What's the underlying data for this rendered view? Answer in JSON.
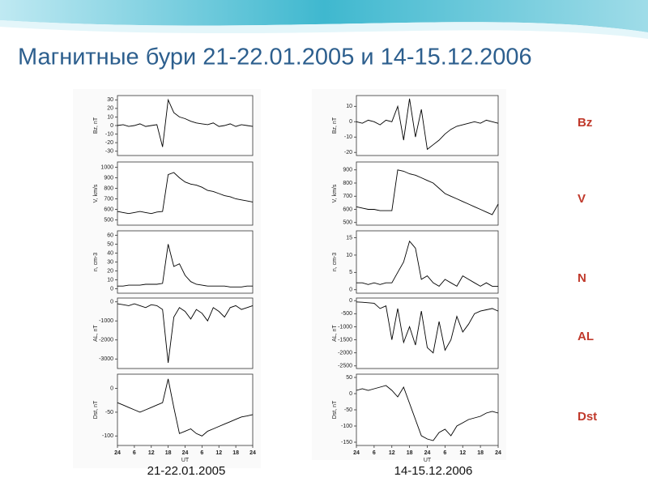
{
  "title": "Магнитные бури 21-22.01.2005 и 14-15.12.2006",
  "captions": [
    "21-22.01.2005",
    "14-15.12.2006"
  ],
  "labels": [
    "Bz",
    "V",
    "N",
    "AL",
    "Dst"
  ],
  "chart_data": [
    {
      "type": "line",
      "ylabel": "Bz, nT",
      "color": "#000",
      "xlim": [
        0,
        48
      ],
      "ylim": [
        -35,
        35
      ],
      "yticks": [
        -30,
        -20,
        -10,
        0,
        10,
        20,
        30
      ],
      "x": [
        0,
        2,
        4,
        6,
        8,
        10,
        12,
        14,
        16,
        18,
        20,
        22,
        24,
        26,
        28,
        30,
        32,
        34,
        36,
        38,
        40,
        42,
        44,
        46,
        48
      ],
      "values": [
        0,
        1,
        -1,
        0,
        2,
        -1,
        0,
        1,
        -25,
        30,
        15,
        10,
        8,
        5,
        3,
        2,
        1,
        3,
        -1,
        0,
        2,
        -1,
        1,
        0,
        -1
      ]
    },
    {
      "type": "line",
      "ylabel": "V, km/s",
      "color": "#000",
      "xlim": [
        0,
        48
      ],
      "ylim": [
        450,
        1050
      ],
      "yticks": [
        500,
        600,
        700,
        800,
        900,
        1000
      ],
      "x": [
        0,
        2,
        4,
        6,
        8,
        10,
        12,
        14,
        16,
        18,
        20,
        22,
        24,
        26,
        28,
        30,
        32,
        34,
        36,
        38,
        40,
        42,
        44,
        46,
        48
      ],
      "values": [
        580,
        570,
        560,
        570,
        580,
        570,
        560,
        575,
        580,
        930,
        950,
        900,
        860,
        840,
        830,
        810,
        780,
        770,
        750,
        730,
        720,
        700,
        690,
        680,
        670
      ]
    },
    {
      "type": "line",
      "ylabel": "n, cm-3",
      "color": "#000",
      "xlim": [
        0,
        48
      ],
      "ylim": [
        -5,
        65
      ],
      "yticks": [
        0,
        10,
        20,
        30,
        40,
        50,
        60
      ],
      "x": [
        0,
        2,
        4,
        6,
        8,
        10,
        12,
        14,
        16,
        18,
        20,
        22,
        24,
        26,
        28,
        30,
        32,
        34,
        36,
        38,
        40,
        42,
        44,
        46,
        48
      ],
      "values": [
        3,
        3,
        4,
        4,
        4,
        5,
        5,
        5,
        6,
        50,
        25,
        28,
        15,
        8,
        5,
        4,
        3,
        3,
        3,
        3,
        2,
        2,
        2,
        3,
        3
      ]
    },
    {
      "type": "line",
      "ylabel": "AL, nT",
      "color": "#000",
      "xlim": [
        0,
        48
      ],
      "ylim": [
        -3500,
        200
      ],
      "yticks": [
        -3000,
        -2000,
        -1000,
        0
      ],
      "x": [
        0,
        2,
        4,
        6,
        8,
        10,
        12,
        14,
        16,
        18,
        20,
        22,
        24,
        26,
        28,
        30,
        32,
        34,
        36,
        38,
        40,
        42,
        44,
        46,
        48
      ],
      "values": [
        -100,
        -150,
        -200,
        -100,
        -200,
        -300,
        -150,
        -200,
        -400,
        -3200,
        -800,
        -300,
        -500,
        -900,
        -400,
        -600,
        -1000,
        -300,
        -500,
        -800,
        -300,
        -200,
        -400,
        -300,
        -200
      ]
    },
    {
      "type": "line",
      "ylabel": "Dst, nT",
      "xlabel": "UT",
      "color": "#000",
      "xlim": [
        0,
        48
      ],
      "ylim": [
        -120,
        30
      ],
      "yticks": [
        -100,
        -50,
        0
      ],
      "xticks": [
        {
          "value": 0,
          "label": "24"
        },
        6,
        12,
        18,
        24,
        {
          "value": 30,
          "label": "6"
        },
        {
          "value": 36,
          "label": "12"
        },
        {
          "value": 42,
          "label": "18"
        },
        {
          "value": 48,
          "label": "24"
        }
      ],
      "x": [
        0,
        2,
        4,
        6,
        8,
        10,
        12,
        14,
        16,
        18,
        20,
        22,
        24,
        26,
        28,
        30,
        32,
        34,
        36,
        38,
        40,
        42,
        44,
        46,
        48
      ],
      "values": [
        -30,
        -35,
        -40,
        -45,
        -50,
        -45,
        -40,
        -35,
        -30,
        20,
        -40,
        -95,
        -90,
        -85,
        -95,
        -100,
        -90,
        -85,
        -80,
        -75,
        -70,
        -65,
        -60,
        -58,
        -55
      ]
    },
    {
      "type": "line",
      "ylabel": "Bz, nT",
      "color": "#000",
      "xlim": [
        0,
        48
      ],
      "ylim": [
        -22,
        17
      ],
      "yticks": [
        -20,
        -10,
        0,
        10
      ],
      "x": [
        0,
        2,
        4,
        6,
        8,
        10,
        12,
        14,
        16,
        18,
        20,
        22,
        24,
        26,
        28,
        30,
        32,
        34,
        36,
        38,
        40,
        42,
        44,
        46,
        48
      ],
      "values": [
        0,
        -1,
        1,
        0,
        -2,
        1,
        0,
        10,
        -12,
        15,
        -10,
        8,
        -18,
        -15,
        -12,
        -8,
        -5,
        -3,
        -2,
        -1,
        0,
        -1,
        1,
        0,
        -1
      ]
    },
    {
      "type": "line",
      "ylabel": "V, km/s",
      "color": "#000",
      "xlim": [
        0,
        48
      ],
      "ylim": [
        480,
        960
      ],
      "yticks": [
        500,
        600,
        700,
        800,
        900
      ],
      "x": [
        0,
        2,
        4,
        6,
        8,
        10,
        12,
        14,
        16,
        18,
        20,
        22,
        24,
        26,
        28,
        30,
        32,
        34,
        36,
        38,
        40,
        42,
        44,
        46,
        48
      ],
      "values": [
        620,
        610,
        600,
        600,
        590,
        590,
        590,
        900,
        890,
        870,
        860,
        840,
        820,
        800,
        760,
        720,
        700,
        680,
        660,
        640,
        620,
        600,
        580,
        560,
        640
      ]
    },
    {
      "type": "line",
      "ylabel": "n, cm-3",
      "color": "#000",
      "xlim": [
        0,
        48
      ],
      "ylim": [
        -1,
        17
      ],
      "yticks": [
        0,
        5,
        10,
        15
      ],
      "x": [
        0,
        2,
        4,
        6,
        8,
        10,
        12,
        14,
        16,
        18,
        20,
        22,
        24,
        26,
        28,
        30,
        32,
        34,
        36,
        38,
        40,
        42,
        44,
        46,
        48
      ],
      "values": [
        2,
        2,
        1.5,
        2,
        1.5,
        2,
        2,
        5,
        8,
        14,
        12,
        3,
        4,
        2,
        1,
        3,
        2,
        1,
        4,
        3,
        2,
        1,
        2,
        1,
        1
      ]
    },
    {
      "type": "line",
      "ylabel": "AL, nT",
      "color": "#000",
      "xlim": [
        0,
        48
      ],
      "ylim": [
        -2600,
        100
      ],
      "yticks": [
        -2500,
        -2000,
        -1500,
        -1000,
        -500,
        0
      ],
      "x": [
        0,
        2,
        4,
        6,
        8,
        10,
        12,
        14,
        16,
        18,
        20,
        22,
        24,
        26,
        28,
        30,
        32,
        34,
        36,
        38,
        40,
        42,
        44,
        46,
        48
      ],
      "values": [
        -50,
        -60,
        -80,
        -100,
        -300,
        -200,
        -1500,
        -300,
        -1600,
        -1000,
        -1700,
        -400,
        -1800,
        -2000,
        -800,
        -1900,
        -1500,
        -600,
        -1200,
        -900,
        -500,
        -400,
        -350,
        -300,
        -400
      ]
    },
    {
      "type": "line",
      "ylabel": "Dst, nT",
      "xlabel": "UT",
      "color": "#000",
      "xlim": [
        0,
        48
      ],
      "ylim": [
        -160,
        60
      ],
      "yticks": [
        -150,
        -100,
        -50,
        0,
        50
      ],
      "xticks": [
        {
          "value": 0,
          "label": "24"
        },
        6,
        12,
        18,
        24,
        {
          "value": 30,
          "label": "6"
        },
        {
          "value": 36,
          "label": "12"
        },
        {
          "value": 42,
          "label": "18"
        },
        {
          "value": 48,
          "label": "24"
        }
      ],
      "x": [
        0,
        2,
        4,
        6,
        8,
        10,
        12,
        14,
        16,
        18,
        20,
        22,
        24,
        26,
        28,
        30,
        32,
        34,
        36,
        38,
        40,
        42,
        44,
        46,
        48
      ],
      "values": [
        10,
        15,
        10,
        15,
        20,
        25,
        10,
        -10,
        20,
        -30,
        -80,
        -130,
        -140,
        -145,
        -120,
        -110,
        -130,
        -100,
        -90,
        -80,
        -75,
        -70,
        -60,
        -55,
        -60
      ]
    }
  ]
}
